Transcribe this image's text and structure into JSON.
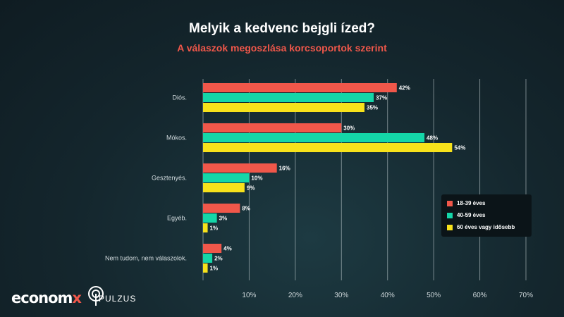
{
  "header": {
    "title": "Melyik a kedvenc bejgli ízed?",
    "subtitle": "A válaszok megoszlása korcsoportok szerint"
  },
  "colors": {
    "series_1": "#f0574a",
    "series_2": "#14d6a8",
    "series_3": "#f7e21b",
    "subtitle": "#f0574a"
  },
  "legend": {
    "items": [
      {
        "label": "18-39 éves",
        "color": "#f0574a"
      },
      {
        "label": "40-59 éves",
        "color": "#14d6a8"
      },
      {
        "label": "60 éves vagy idősebb",
        "color": "#f7e21b"
      }
    ]
  },
  "chart_data": {
    "type": "bar",
    "orientation": "horizontal",
    "title": "Melyik a kedvenc bejgli ízed?",
    "subtitle": "A válaszok megoszlása korcsoportok szerint",
    "categories": [
      "Diós.",
      "Mókos.",
      "Gesztenyés.",
      "Egyéb.",
      "Nem tudom, nem válaszolok."
    ],
    "series": [
      {
        "name": "18-39 éves",
        "values": [
          42,
          30,
          16,
          8,
          4
        ]
      },
      {
        "name": "40-59 éves",
        "values": [
          37,
          48,
          10,
          3,
          2
        ]
      },
      {
        "name": "60 éves vagy idősebb",
        "values": [
          35,
          54,
          9,
          1,
          1
        ]
      }
    ],
    "value_suffix": "%",
    "xlim": [
      0,
      70
    ],
    "xticks": [
      10,
      20,
      30,
      40,
      50,
      60,
      70
    ],
    "xtick_labels": [
      "10%",
      "20%",
      "30%",
      "40%",
      "50%",
      "60%",
      "70%"
    ],
    "grid": true,
    "legend_position": "right"
  },
  "logos": {
    "economx": {
      "text": "econom",
      "accent": "x"
    },
    "pulzus": {
      "text": "PULZUS"
    }
  }
}
